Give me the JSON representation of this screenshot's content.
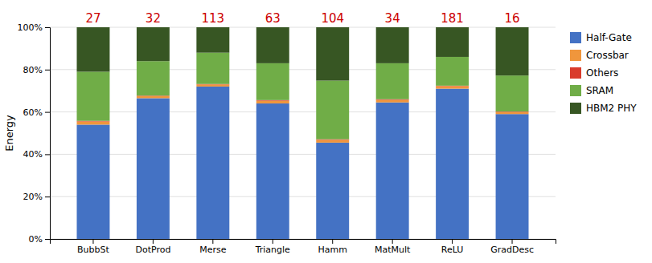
{
  "chart_data": {
    "type": "bar",
    "stacked": true,
    "categories": [
      "BubbSt",
      "DotProd",
      "Merse",
      "Triangle",
      "Hamm",
      "MatMult",
      "ReLU",
      "GradDesc"
    ],
    "series": [
      {
        "name": "Half-Gate",
        "color": "#4472c4",
        "values": [
          0.54,
          0.665,
          0.72,
          0.64,
          0.455,
          0.645,
          0.71,
          0.59
        ]
      },
      {
        "name": "Crossbar",
        "color": "#f0963c",
        "values": [
          0.015,
          0.01,
          0.01,
          0.013,
          0.013,
          0.012,
          0.012,
          0.01
        ]
      },
      {
        "name": "Others",
        "color": "#d93b2b",
        "values": [
          0.003,
          0.002,
          0.002,
          0.003,
          0.003,
          0.003,
          0.002,
          0.002
        ]
      },
      {
        "name": "SRAM",
        "color": "#70ad47",
        "values": [
          0.232,
          0.163,
          0.148,
          0.174,
          0.277,
          0.17,
          0.136,
          0.17
        ]
      },
      {
        "name": "HBM2 PHY",
        "color": "#375623",
        "values": [
          0.21,
          0.16,
          0.12,
          0.17,
          0.252,
          0.17,
          0.14,
          0.228
        ]
      }
    ],
    "annotations": [
      {
        "text": "27",
        "color": "#cc0000"
      },
      {
        "text": "32",
        "color": "#cc0000"
      },
      {
        "text": "113",
        "color": "#cc0000"
      },
      {
        "text": "63",
        "color": "#cc0000"
      },
      {
        "text": "104",
        "color": "#cc0000"
      },
      {
        "text": "34",
        "color": "#cc0000"
      },
      {
        "text": "181",
        "color": "#cc0000"
      },
      {
        "text": "16",
        "color": "#cc0000"
      }
    ],
    "y_label": "Energy",
    "ylim": [
      0,
      1.0
    ],
    "yticks": [
      {
        "value": 0.0,
        "label": "0%"
      },
      {
        "value": 0.2,
        "label": "20%"
      },
      {
        "value": 0.4,
        "label": "40%"
      },
      {
        "value": 0.6,
        "label": "60%"
      },
      {
        "value": 0.8,
        "label": "80%"
      },
      {
        "value": 1.0,
        "label": "100%"
      }
    ],
    "grid": true,
    "legend": "right"
  }
}
